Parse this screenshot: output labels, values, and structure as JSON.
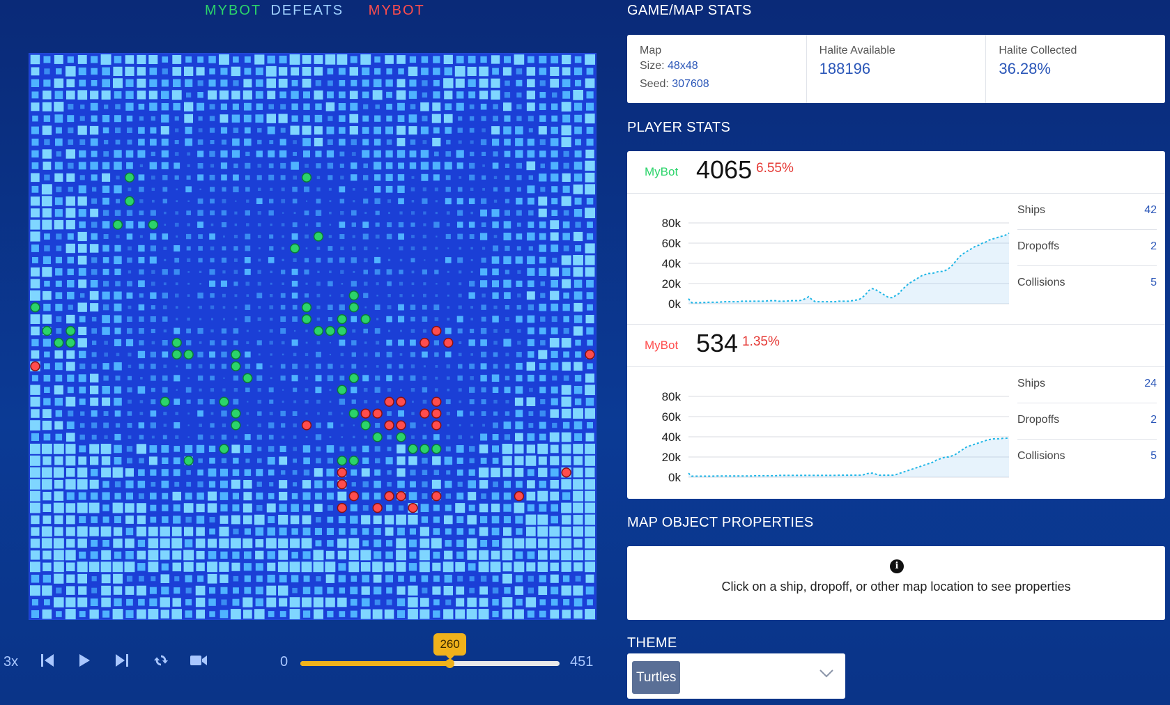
{
  "header": {
    "player1": "MYBOT",
    "verb": "DEFEATS",
    "player2": "MYBOT"
  },
  "colors": {
    "player1": "#2bd46a",
    "player2": "#ff4d4d",
    "accent": "#f0b21b",
    "value_blue": "#2a56b8"
  },
  "controls": {
    "speed": "3x",
    "icons": [
      "skip-back-icon",
      "play-icon",
      "skip-forward-icon",
      "repeat-icon",
      "camera-icon"
    ],
    "start": "0",
    "end": "451",
    "current": "260",
    "progress": 0.5765
  },
  "game_map_stats": {
    "title": "GAME/MAP STATS",
    "map_label": "Map",
    "size_label": "Size:",
    "size_value": "48x48",
    "seed_label": "Seed:",
    "seed_value": "307608",
    "halite_available_label": "Halite Available",
    "halite_available_value": "188196",
    "halite_collected_label": "Halite Collected",
    "halite_collected_value": "36.28%"
  },
  "player_stats": {
    "title": "PLAYER STATS",
    "players": [
      {
        "name": "MyBot",
        "color": "#2bd46a",
        "score": "4065",
        "percent": "6.55%",
        "chart_ticks": [
          "80k",
          "60k",
          "40k",
          "20k",
          "0k"
        ],
        "ships_label": "Ships",
        "ships": "42",
        "dropoffs_label": "Dropoffs",
        "dropoffs": "2",
        "collisions_label": "Collisions",
        "collisions": "5"
      },
      {
        "name": "MyBot",
        "color": "#ff4d4d",
        "score": "534",
        "percent": "1.35%",
        "chart_ticks": [
          "80k",
          "60k",
          "40k",
          "20k",
          "0k"
        ],
        "ships_label": "Ships",
        "ships": "24",
        "dropoffs_label": "Dropoffs",
        "dropoffs": "2",
        "collisions_label": "Collisions",
        "collisions": "5"
      }
    ]
  },
  "chart_data": [
    {
      "type": "line",
      "series": [
        {
          "values": [
            5000,
            1000,
            1000,
            1000,
            1200,
            1200,
            1500,
            1500,
            1500,
            1500,
            1800,
            2000,
            2000,
            2000,
            2000,
            2000,
            2500,
            2500,
            2500,
            2500,
            2500,
            2500,
            2500,
            2500,
            3000,
            3000,
            3000,
            2500,
            2500,
            2500,
            2800,
            3000,
            3000,
            3000,
            3500,
            5000,
            7000,
            4000,
            2000,
            2000,
            2000,
            2000,
            2000,
            2000,
            2000,
            2500,
            2500,
            2500,
            2500,
            3000,
            3500,
            4000,
            6000,
            9000,
            13000,
            15000,
            14000,
            12000,
            10000,
            8000,
            6000,
            6000,
            8000,
            10000,
            14000,
            17000,
            20000,
            22000,
            24000,
            26000,
            28000,
            29000,
            30000,
            30000,
            31000,
            32000,
            32000,
            33000,
            35000,
            38000,
            42000,
            46000,
            49000,
            51000,
            53000,
            55000,
            57000,
            58000,
            60000,
            61000,
            63000,
            64000,
            65000,
            66000,
            67000,
            68000,
            70000
          ]
        }
      ],
      "yticks": [
        "0k",
        "20k",
        "40k",
        "60k",
        "80k"
      ],
      "ylim": [
        0,
        80000
      ]
    },
    {
      "type": "line",
      "series": [
        {
          "values": [
            4000,
            1000,
            1000,
            1000,
            1000,
            1000,
            1000,
            1000,
            1000,
            1200,
            1200,
            1200,
            1200,
            1200,
            1200,
            1200,
            1200,
            1200,
            1200,
            1200,
            1200,
            1200,
            1500,
            1500,
            1500,
            1500,
            1500,
            1500,
            1500,
            1500,
            1800,
            1800,
            1800,
            1800,
            1800,
            1800,
            1800,
            1800,
            1800,
            1800,
            1800,
            1800,
            1800,
            1800,
            1800,
            1800,
            1800,
            1800,
            1800,
            1800,
            2000,
            2000,
            2000,
            2000,
            2000,
            2000,
            2000,
            2000,
            2500,
            3500,
            4000,
            4000,
            3000,
            2000,
            2000,
            2000,
            2000,
            2000,
            2000,
            3000,
            4000,
            5000,
            6000,
            7000,
            8000,
            9000,
            10000,
            11000,
            12000,
            13000,
            14000,
            15000,
            17000,
            18000,
            19000,
            20000,
            20000,
            21000,
            22000,
            24000,
            26000,
            28000,
            30000,
            31000,
            32000,
            33000,
            34000,
            35000,
            36000,
            37000,
            37500,
            38000,
            38000,
            38000,
            38500,
            38500,
            39000
          ]
        }
      ],
      "yticks": [
        "0k",
        "20k",
        "40k",
        "60k",
        "80k"
      ],
      "ylim": [
        0,
        80000
      ]
    }
  ],
  "map_object_properties": {
    "title": "MAP OBJECT PROPERTIES",
    "info_glyph": "i",
    "message": "Click on a ship, dropoff, or other map location to see properties"
  },
  "theme": {
    "title": "THEME",
    "selected": "Turtles",
    "caret": "chevron-down-icon"
  }
}
